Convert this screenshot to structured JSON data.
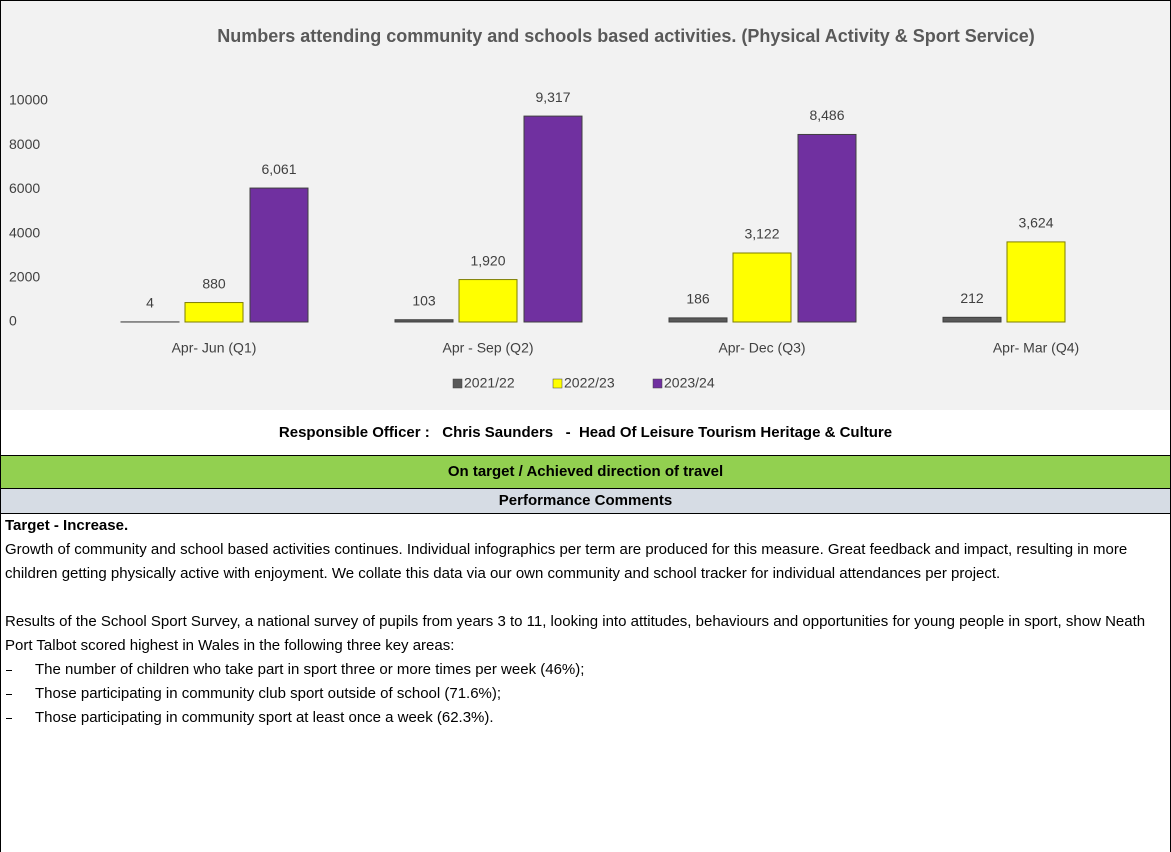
{
  "chart_data": {
    "type": "bar",
    "title": "Numbers attending community and schools based activities.  (Physical Activity & Sport Service)",
    "categories": [
      "Apr- Jun  (Q1)",
      "Apr - Sep  (Q2)",
      "Apr- Dec  (Q3)",
      "Apr- Mar  (Q4)"
    ],
    "series": [
      {
        "name": "2021/22",
        "color": "#595959",
        "values": [
          4,
          103,
          186,
          212
        ],
        "value_labels": [
          "4",
          "103",
          "186",
          "212"
        ]
      },
      {
        "name": "2022/23",
        "color": "#ffff00",
        "values": [
          880,
          1920,
          3122,
          3624
        ],
        "value_labels": [
          "880",
          "1,920",
          "3,122",
          "3,624"
        ]
      },
      {
        "name": "2023/24",
        "color": "#7030a0",
        "values": [
          6061,
          9317,
          8486,
          null
        ],
        "value_labels": [
          "6,061",
          "9,317",
          "8,486",
          null
        ]
      }
    ],
    "ylim": [
      0,
      10000
    ],
    "yticks": [
      0,
      2000,
      4000,
      6000,
      8000,
      10000
    ],
    "grid": false,
    "legend": "bottom"
  },
  "officer": "Responsible Officer :   Chris Saunders   -  Head Of Leisure Tourism Heritage & Culture",
  "status": "On target / Achieved direction of travel",
  "comments": {
    "heading": "Performance Comments",
    "target": "Target - Increase.",
    "paragraphs": [
      "Growth of community and school based activities continues. Individual infographics per term are produced for this measure. Great feedback and impact, resulting in more children getting physically active with enjoyment. We collate this data via our own community and school tracker for individual attendances per project.",
      "Results of the School Sport Survey, a national survey of pupils from years 3 to 11, looking into attitudes, behaviours and opportunities for young people in sport, show Neath Port Talbot scored highest in Wales in the following three key areas:"
    ],
    "bullets": [
      "The number of children who take part in sport three or more times per week (46%);",
      "Those participating in community club sport outside of school (71.6%);",
      "Those participating in community sport at least once a week (62.3%)."
    ]
  }
}
